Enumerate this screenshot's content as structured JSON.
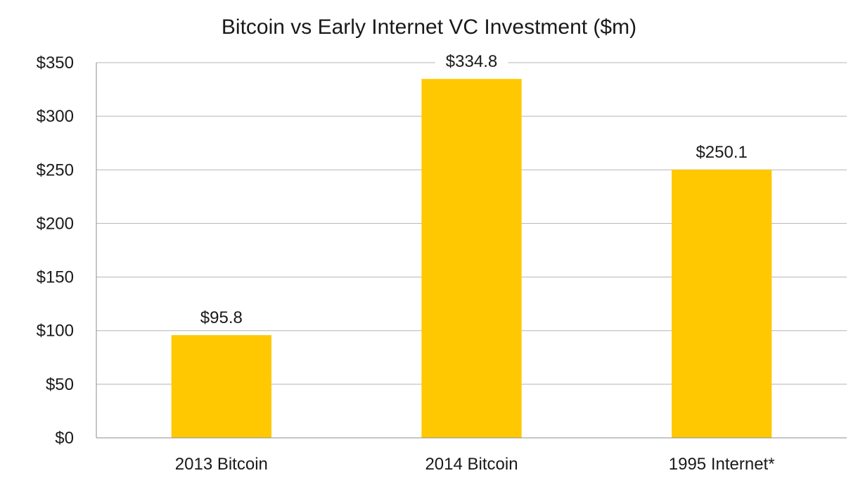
{
  "chart_data": {
    "type": "bar",
    "title": "Bitcoin vs Early Internet VC Investment ($m)",
    "categories": [
      "2013 Bitcoin",
      "2014 Bitcoin",
      "1995 Internet*"
    ],
    "values": [
      95.8,
      334.8,
      250.1
    ],
    "data_labels": [
      "$95.8",
      "$334.8",
      "$250.1"
    ],
    "ylim": [
      0,
      350
    ],
    "yticks": [
      0,
      50,
      100,
      150,
      200,
      250,
      300,
      350
    ],
    "ytick_labels": [
      "$0",
      "$50",
      "$100",
      "$150",
      "$200",
      "$250",
      "$300",
      "$350"
    ],
    "xlabel": "",
    "ylabel": "",
    "grid": true,
    "legend": "none",
    "bar_color": "#FFC800",
    "grid_color": "#b5b5b5"
  }
}
